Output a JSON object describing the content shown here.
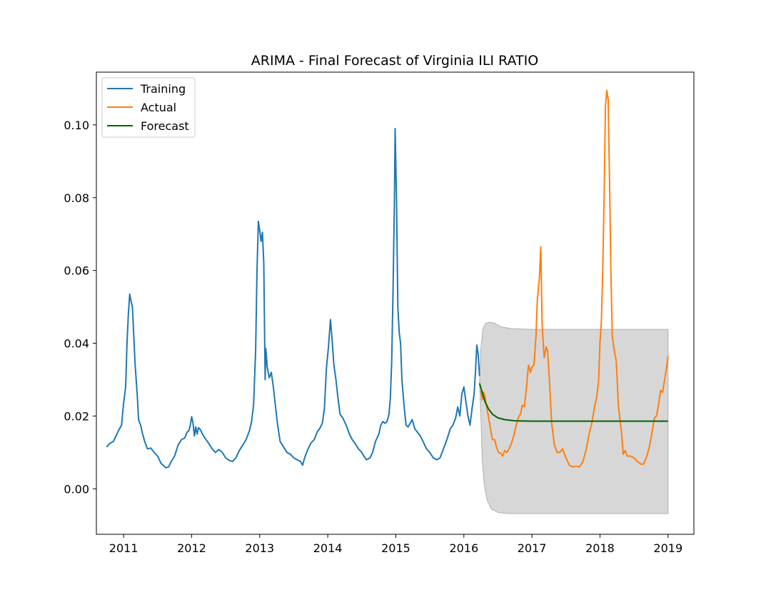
{
  "chart_data": {
    "type": "line",
    "title": "ARIMA - Final Forecast of Virginia ILI RATIO",
    "xlabel": "",
    "ylabel": "",
    "xlim": [
      2010.6,
      2019.38
    ],
    "ylim": [
      -0.0125,
      0.1145
    ],
    "xticks": [
      {
        "value": 2011,
        "label": "2011"
      },
      {
        "value": 2012,
        "label": "2012"
      },
      {
        "value": 2013,
        "label": "2013"
      },
      {
        "value": 2014,
        "label": "2014"
      },
      {
        "value": 2015,
        "label": "2015"
      },
      {
        "value": 2016,
        "label": "2016"
      },
      {
        "value": 2017,
        "label": "2017"
      },
      {
        "value": 2018,
        "label": "2018"
      },
      {
        "value": 2019,
        "label": "2019"
      }
    ],
    "yticks": [
      {
        "value": 0.0,
        "label": "0.00"
      },
      {
        "value": 0.02,
        "label": "0.02"
      },
      {
        "value": 0.04,
        "label": "0.04"
      },
      {
        "value": 0.06,
        "label": "0.06"
      },
      {
        "value": 0.08,
        "label": "0.08"
      },
      {
        "value": 0.1,
        "label": "0.10"
      }
    ],
    "grid": false,
    "legend_position": "top-left",
    "series": [
      {
        "name": "Training",
        "color": "#1f77b4",
        "points": [
          [
            2010.75,
            0.0115
          ],
          [
            2010.8,
            0.0125
          ],
          [
            2010.85,
            0.013
          ],
          [
            2010.9,
            0.015
          ],
          [
            2010.93,
            0.0162
          ],
          [
            2010.97,
            0.0175
          ],
          [
            2011.0,
            0.0235
          ],
          [
            2011.03,
            0.028
          ],
          [
            2011.05,
            0.04
          ],
          [
            2011.07,
            0.048
          ],
          [
            2011.09,
            0.0535
          ],
          [
            2011.11,
            0.0515
          ],
          [
            2011.13,
            0.05
          ],
          [
            2011.15,
            0.042
          ],
          [
            2011.17,
            0.034
          ],
          [
            2011.2,
            0.026
          ],
          [
            2011.22,
            0.019
          ],
          [
            2011.25,
            0.0175
          ],
          [
            2011.28,
            0.015
          ],
          [
            2011.31,
            0.013
          ],
          [
            2011.35,
            0.011
          ],
          [
            2011.4,
            0.0112
          ],
          [
            2011.45,
            0.01
          ],
          [
            2011.5,
            0.009
          ],
          [
            2011.55,
            0.007
          ],
          [
            2011.58,
            0.0065
          ],
          [
            2011.62,
            0.0058
          ],
          [
            2011.66,
            0.006
          ],
          [
            2011.7,
            0.0075
          ],
          [
            2011.75,
            0.009
          ],
          [
            2011.8,
            0.012
          ],
          [
            2011.85,
            0.0135
          ],
          [
            2011.9,
            0.014
          ],
          [
            2011.93,
            0.0155
          ],
          [
            2011.96,
            0.016
          ],
          [
            2011.98,
            0.0175
          ],
          [
            2012.0,
            0.0198
          ],
          [
            2012.02,
            0.018
          ],
          [
            2012.04,
            0.0145
          ],
          [
            2012.06,
            0.017
          ],
          [
            2012.08,
            0.015
          ],
          [
            2012.1,
            0.0168
          ],
          [
            2012.13,
            0.0162
          ],
          [
            2012.16,
            0.015
          ],
          [
            2012.2,
            0.0138
          ],
          [
            2012.25,
            0.0125
          ],
          [
            2012.3,
            0.011
          ],
          [
            2012.35,
            0.01
          ],
          [
            2012.4,
            0.0108
          ],
          [
            2012.45,
            0.01
          ],
          [
            2012.5,
            0.0085
          ],
          [
            2012.55,
            0.0078
          ],
          [
            2012.6,
            0.0075
          ],
          [
            2012.65,
            0.0085
          ],
          [
            2012.7,
            0.0105
          ],
          [
            2012.75,
            0.012
          ],
          [
            2012.8,
            0.0135
          ],
          [
            2012.85,
            0.016
          ],
          [
            2012.88,
            0.0185
          ],
          [
            2012.91,
            0.023
          ],
          [
            2012.94,
            0.038
          ],
          [
            2012.96,
            0.06
          ],
          [
            2012.98,
            0.0735
          ],
          [
            2013.0,
            0.071
          ],
          [
            2013.02,
            0.068
          ],
          [
            2013.04,
            0.0705
          ],
          [
            2013.06,
            0.062
          ],
          [
            2013.08,
            0.03
          ],
          [
            2013.09,
            0.0385
          ],
          [
            2013.11,
            0.0335
          ],
          [
            2013.14,
            0.0305
          ],
          [
            2013.17,
            0.032
          ],
          [
            2013.2,
            0.028
          ],
          [
            2013.23,
            0.023
          ],
          [
            2013.26,
            0.018
          ],
          [
            2013.3,
            0.013
          ],
          [
            2013.35,
            0.0115
          ],
          [
            2013.4,
            0.01
          ],
          [
            2013.45,
            0.0095
          ],
          [
            2013.5,
            0.0085
          ],
          [
            2013.55,
            0.008
          ],
          [
            2013.6,
            0.0075
          ],
          [
            2013.63,
            0.0065
          ],
          [
            2013.66,
            0.0085
          ],
          [
            2013.7,
            0.0105
          ],
          [
            2013.75,
            0.0125
          ],
          [
            2013.8,
            0.0135
          ],
          [
            2013.85,
            0.0158
          ],
          [
            2013.88,
            0.0165
          ],
          [
            2013.92,
            0.018
          ],
          [
            2013.95,
            0.022
          ],
          [
            2013.98,
            0.033
          ],
          [
            2014.01,
            0.039
          ],
          [
            2014.04,
            0.0465
          ],
          [
            2014.06,
            0.042
          ],
          [
            2014.09,
            0.034
          ],
          [
            2014.12,
            0.03
          ],
          [
            2014.15,
            0.025
          ],
          [
            2014.18,
            0.0205
          ],
          [
            2014.22,
            0.0195
          ],
          [
            2014.27,
            0.0175
          ],
          [
            2014.32,
            0.015
          ],
          [
            2014.36,
            0.0135
          ],
          [
            2014.4,
            0.0125
          ],
          [
            2014.45,
            0.011
          ],
          [
            2014.5,
            0.01
          ],
          [
            2014.53,
            0.009
          ],
          [
            2014.57,
            0.008
          ],
          [
            2014.62,
            0.0085
          ],
          [
            2014.66,
            0.01
          ],
          [
            2014.7,
            0.013
          ],
          [
            2014.75,
            0.015
          ],
          [
            2014.78,
            0.0175
          ],
          [
            2014.81,
            0.0185
          ],
          [
            2014.84,
            0.018
          ],
          [
            2014.87,
            0.0185
          ],
          [
            2014.9,
            0.0205
          ],
          [
            2014.92,
            0.025
          ],
          [
            2014.94,
            0.035
          ],
          [
            2014.96,
            0.055
          ],
          [
            2014.98,
            0.079
          ],
          [
            2014.99,
            0.099
          ],
          [
            2015.01,
            0.08
          ],
          [
            2015.03,
            0.05
          ],
          [
            2015.05,
            0.043
          ],
          [
            2015.07,
            0.04
          ],
          [
            2015.09,
            0.03
          ],
          [
            2015.12,
            0.023
          ],
          [
            2015.15,
            0.0175
          ],
          [
            2015.18,
            0.017
          ],
          [
            2015.21,
            0.018
          ],
          [
            2015.24,
            0.019
          ],
          [
            2015.28,
            0.0165
          ],
          [
            2015.32,
            0.0155
          ],
          [
            2015.36,
            0.0145
          ],
          [
            2015.4,
            0.013
          ],
          [
            2015.45,
            0.011
          ],
          [
            2015.5,
            0.01
          ],
          [
            2015.55,
            0.0085
          ],
          [
            2015.6,
            0.008
          ],
          [
            2015.65,
            0.0085
          ],
          [
            2015.7,
            0.011
          ],
          [
            2015.75,
            0.0135
          ],
          [
            2015.8,
            0.0165
          ],
          [
            2015.84,
            0.0175
          ],
          [
            2015.88,
            0.0195
          ],
          [
            2015.91,
            0.0225
          ],
          [
            2015.94,
            0.02
          ],
          [
            2015.97,
            0.026
          ],
          [
            2016.0,
            0.028
          ],
          [
            2016.03,
            0.024
          ],
          [
            2016.06,
            0.02
          ],
          [
            2016.09,
            0.0175
          ],
          [
            2016.12,
            0.022
          ],
          [
            2016.15,
            0.026
          ],
          [
            2016.17,
            0.032
          ],
          [
            2016.19,
            0.0395
          ],
          [
            2016.21,
            0.037
          ],
          [
            2016.23,
            0.031
          ]
        ]
      },
      {
        "name": "Actual",
        "color": "#ff7f0e",
        "points": [
          [
            2016.25,
            0.027
          ],
          [
            2016.27,
            0.0245
          ],
          [
            2016.29,
            0.0265
          ],
          [
            2016.31,
            0.0255
          ],
          [
            2016.33,
            0.023
          ],
          [
            2016.36,
            0.02
          ],
          [
            2016.39,
            0.0165
          ],
          [
            2016.42,
            0.0135
          ],
          [
            2016.45,
            0.0135
          ],
          [
            2016.48,
            0.0115
          ],
          [
            2016.51,
            0.01
          ],
          [
            2016.54,
            0.0098
          ],
          [
            2016.57,
            0.009
          ],
          [
            2016.6,
            0.0105
          ],
          [
            2016.63,
            0.01
          ],
          [
            2016.66,
            0.0108
          ],
          [
            2016.7,
            0.0125
          ],
          [
            2016.74,
            0.015
          ],
          [
            2016.77,
            0.0175
          ],
          [
            2016.8,
            0.0195
          ],
          [
            2016.83,
            0.0205
          ],
          [
            2016.86,
            0.023
          ],
          [
            2016.89,
            0.0225
          ],
          [
            2016.92,
            0.028
          ],
          [
            2016.95,
            0.034
          ],
          [
            2016.98,
            0.032
          ],
          [
            2017.0,
            0.0335
          ],
          [
            2017.03,
            0.034
          ],
          [
            2017.06,
            0.042
          ],
          [
            2017.08,
            0.052
          ],
          [
            2017.11,
            0.058
          ],
          [
            2017.13,
            0.0665
          ],
          [
            2017.15,
            0.045
          ],
          [
            2017.18,
            0.036
          ],
          [
            2017.21,
            0.039
          ],
          [
            2017.23,
            0.038
          ],
          [
            2017.26,
            0.029
          ],
          [
            2017.29,
            0.018
          ],
          [
            2017.33,
            0.012
          ],
          [
            2017.37,
            0.01
          ],
          [
            2017.41,
            0.01
          ],
          [
            2017.45,
            0.011
          ],
          [
            2017.5,
            0.0085
          ],
          [
            2017.55,
            0.0065
          ],
          [
            2017.6,
            0.006
          ],
          [
            2017.65,
            0.0062
          ],
          [
            2017.7,
            0.006
          ],
          [
            2017.75,
            0.0075
          ],
          [
            2017.8,
            0.011
          ],
          [
            2017.84,
            0.015
          ],
          [
            2017.88,
            0.018
          ],
          [
            2017.92,
            0.0225
          ],
          [
            2017.95,
            0.025
          ],
          [
            2017.98,
            0.0295
          ],
          [
            2018.0,
            0.04
          ],
          [
            2018.02,
            0.046
          ],
          [
            2018.04,
            0.06
          ],
          [
            2018.06,
            0.08
          ],
          [
            2018.08,
            0.105
          ],
          [
            2018.1,
            0.1095
          ],
          [
            2018.12,
            0.107
          ],
          [
            2018.14,
            0.085
          ],
          [
            2018.16,
            0.06
          ],
          [
            2018.18,
            0.042
          ],
          [
            2018.21,
            0.038
          ],
          [
            2018.24,
            0.035
          ],
          [
            2018.27,
            0.023
          ],
          [
            2018.3,
            0.018
          ],
          [
            2018.32,
            0.015
          ],
          [
            2018.34,
            0.0095
          ],
          [
            2018.37,
            0.0105
          ],
          [
            2018.4,
            0.009
          ],
          [
            2018.45,
            0.009
          ],
          [
            2018.5,
            0.0085
          ],
          [
            2018.55,
            0.0075
          ],
          [
            2018.6,
            0.0068
          ],
          [
            2018.64,
            0.0068
          ],
          [
            2018.68,
            0.0085
          ],
          [
            2018.72,
            0.011
          ],
          [
            2018.76,
            0.015
          ],
          [
            2018.8,
            0.0195
          ],
          [
            2018.83,
            0.02
          ],
          [
            2018.86,
            0.023
          ],
          [
            2018.89,
            0.027
          ],
          [
            2018.92,
            0.0265
          ],
          [
            2018.95,
            0.03
          ],
          [
            2018.98,
            0.0335
          ],
          [
            2019.0,
            0.0365
          ]
        ]
      },
      {
        "name": "Forecast",
        "color": "#006400",
        "points": [
          [
            2016.23,
            0.029
          ],
          [
            2016.27,
            0.0265
          ],
          [
            2016.31,
            0.024
          ],
          [
            2016.36,
            0.022
          ],
          [
            2016.42,
            0.0205
          ],
          [
            2016.5,
            0.0195
          ],
          [
            2016.6,
            0.019
          ],
          [
            2016.75,
            0.0187
          ],
          [
            2017.0,
            0.0186
          ],
          [
            2017.5,
            0.0186
          ],
          [
            2018.0,
            0.0186
          ],
          [
            2018.5,
            0.0186
          ],
          [
            2019.0,
            0.0186
          ]
        ]
      }
    ],
    "confidence_interval": {
      "color": "#d3d3d3",
      "upper": [
        [
          2016.23,
          0.029
        ],
        [
          2016.25,
          0.0385
        ],
        [
          2016.28,
          0.044
        ],
        [
          2016.32,
          0.0455
        ],
        [
          2016.38,
          0.0458
        ],
        [
          2016.45,
          0.0455
        ],
        [
          2016.55,
          0.0445
        ],
        [
          2016.7,
          0.044
        ],
        [
          2017.0,
          0.0438
        ],
        [
          2018.0,
          0.0438
        ],
        [
          2019.0,
          0.0438
        ]
      ],
      "lower": [
        [
          2016.23,
          0.029
        ],
        [
          2016.25,
          0.02
        ],
        [
          2016.27,
          0.008
        ],
        [
          2016.3,
          0.001
        ],
        [
          2016.34,
          -0.003
        ],
        [
          2016.4,
          -0.0055
        ],
        [
          2016.5,
          -0.0065
        ],
        [
          2016.65,
          -0.0068
        ],
        [
          2017.0,
          -0.0068
        ],
        [
          2018.0,
          -0.0068
        ],
        [
          2019.0,
          -0.0068
        ]
      ]
    }
  }
}
